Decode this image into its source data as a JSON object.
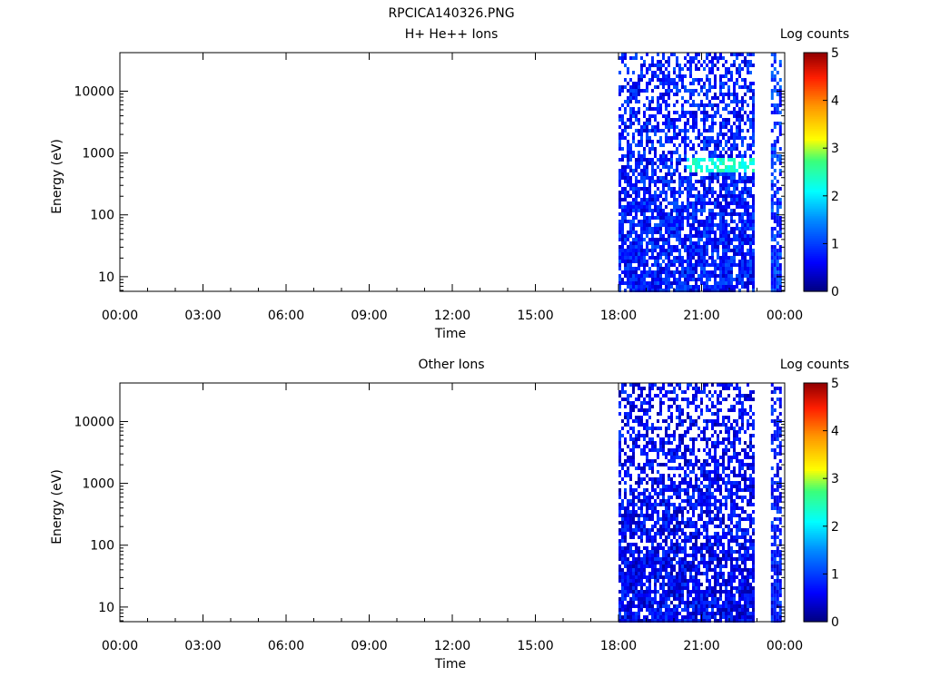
{
  "figure": {
    "title": "RPCICA140326.PNG"
  },
  "chart_data": [
    {
      "type": "heatmap",
      "title": "H+ He++ Ions",
      "xlabel": "Time",
      "ylabel": "Energy (eV)",
      "x_ticks": [
        "00:00",
        "03:00",
        "06:00",
        "09:00",
        "12:00",
        "15:00",
        "18:00",
        "21:00",
        "00:00"
      ],
      "xlim_hours": [
        0,
        24
      ],
      "y_scale": "log",
      "y_ticks": [
        10,
        100,
        1000,
        10000
      ],
      "y_tick_labels": [
        "10",
        "100",
        "1000",
        "10000"
      ],
      "ylim": [
        5.8,
        42000
      ],
      "colorbar": {
        "label": "Log counts",
        "range": [
          0,
          5
        ],
        "ticks": [
          "0",
          "1",
          "2",
          "3",
          "4",
          "5"
        ],
        "colormap": "rainbow"
      },
      "data_segments": [
        {
          "t_start": 18.0,
          "t_end": 22.9,
          "emin": 5.8,
          "emax": 42000,
          "level": 0.75
        },
        {
          "t_start": 23.5,
          "t_end": 23.8,
          "emin": 5.8,
          "emax": 42000,
          "level": 0.9
        }
      ],
      "bands": [
        {
          "t_start": 20.4,
          "t_end": 22.9,
          "emin": 550,
          "emax": 950,
          "level": 2.3
        }
      ]
    },
    {
      "type": "heatmap",
      "title": "Other Ions",
      "xlabel": "Time",
      "ylabel": "Energy (eV)",
      "x_ticks": [
        "00:00",
        "03:00",
        "06:00",
        "09:00",
        "12:00",
        "15:00",
        "18:00",
        "21:00",
        "00:00"
      ],
      "xlim_hours": [
        0,
        24
      ],
      "y_scale": "log",
      "y_ticks": [
        10,
        100,
        1000,
        10000
      ],
      "y_tick_labels": [
        "10",
        "100",
        "1000",
        "10000"
      ],
      "ylim": [
        5.8,
        42000
      ],
      "colorbar": {
        "label": "Log counts",
        "range": [
          0,
          5
        ],
        "ticks": [
          "0",
          "1",
          "2",
          "3",
          "4",
          "5"
        ],
        "colormap": "rainbow"
      },
      "data_segments": [
        {
          "t_start": 18.0,
          "t_end": 22.9,
          "emin": 5.8,
          "emax": 42000,
          "level": 0.6
        },
        {
          "t_start": 23.5,
          "t_end": 23.8,
          "emin": 5.8,
          "emax": 42000,
          "level": 0.7
        }
      ],
      "bands": []
    }
  ]
}
